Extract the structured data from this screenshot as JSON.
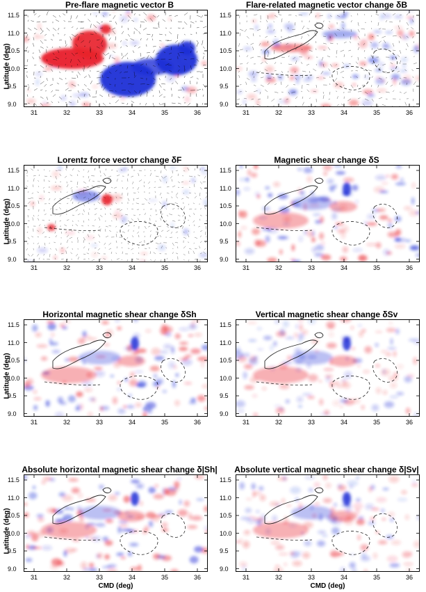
{
  "figure": {
    "panels": [
      {
        "id": "p1",
        "title": "Pre-flare magnetic vector B",
        "kind": "vector"
      },
      {
        "id": "p2",
        "title": "Flare-related magnetic vector change δB",
        "kind": "change"
      },
      {
        "id": "p3",
        "title": "Lorentz force vector change δF",
        "kind": "force"
      },
      {
        "id": "p4",
        "title": "Magnetic shear change δS",
        "kind": "shear"
      },
      {
        "id": "p5",
        "title": "Horizontal magnetic shear change δSh",
        "kind": "shear_h"
      },
      {
        "id": "p6",
        "title": "Vertical magnetic shear change δSv",
        "kind": "shear_v"
      },
      {
        "id": "p7",
        "title": "Absolute horizontal magnetic shear change δ|Sh|",
        "kind": "abs_h"
      },
      {
        "id": "p8",
        "title": "Absolute vertical magnetic shear change δ|Sv|",
        "kind": "abs_v"
      }
    ],
    "y_axis_label": "Latitude (deg)",
    "x_axis_label": "CMD (deg)",
    "y_ticks": [
      "11.5",
      "11.0",
      "10.5",
      "10.0",
      "9.5",
      "9.0"
    ],
    "x_ticks": [
      "31",
      "32",
      "33",
      "34",
      "35",
      "36"
    ],
    "colors": {
      "positive": "#e8202a",
      "negative": "#1e2fd6",
      "background": "#ffffff",
      "contour": "#000000"
    }
  }
}
